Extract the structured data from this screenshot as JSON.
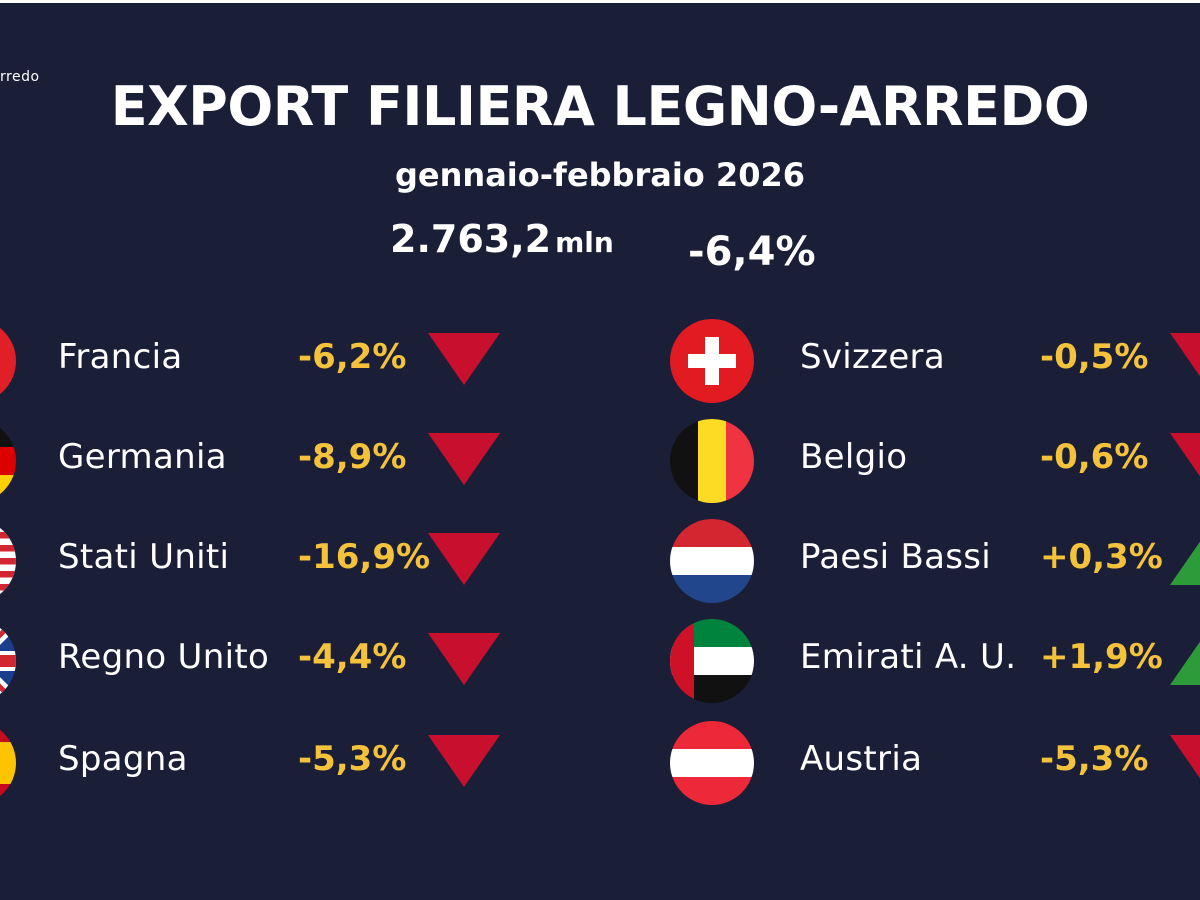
{
  "logo_fragment": "rredo",
  "title": "EXPORT FILIERA LEGNO-ARREDO",
  "subtitle": "gennaio-febbraio 2026",
  "total": {
    "value": "2.763,2",
    "unit": "mln",
    "change": "-6,4%"
  },
  "colors": {
    "background": "#1a1e36",
    "percent": "#f5c33b",
    "down": "#c8102e",
    "up": "#2e9b3a"
  },
  "left": [
    {
      "country": "Francia",
      "change": "-6,2%",
      "trend": "down",
      "flag": "france-flag-icon"
    },
    {
      "country": "Germania",
      "change": "-8,9%",
      "trend": "down",
      "flag": "germany-flag-icon"
    },
    {
      "country": "Stati Uniti",
      "change": "-16,9%",
      "trend": "down",
      "flag": "usa-flag-icon"
    },
    {
      "country": "Regno Unito",
      "change": "-4,4%",
      "trend": "down",
      "flag": "uk-flag-icon"
    },
    {
      "country": "Spagna",
      "change": "-5,3%",
      "trend": "down",
      "flag": "spain-flag-icon"
    }
  ],
  "right": [
    {
      "country": "Svizzera",
      "change": "-0,5%",
      "trend": "down",
      "flag": "switzerland-flag-icon"
    },
    {
      "country": "Belgio",
      "change": "-0,6%",
      "trend": "down",
      "flag": "belgium-flag-icon"
    },
    {
      "country": "Paesi Bassi",
      "change": "+0,3%",
      "trend": "up",
      "flag": "netherlands-flag-icon"
    },
    {
      "country": "Emirati A. U.",
      "change": "+1,9%",
      "trend": "up",
      "flag": "uae-flag-icon"
    },
    {
      "country": "Austria",
      "change": "-5,3%",
      "trend": "down",
      "flag": "austria-flag-icon"
    }
  ]
}
